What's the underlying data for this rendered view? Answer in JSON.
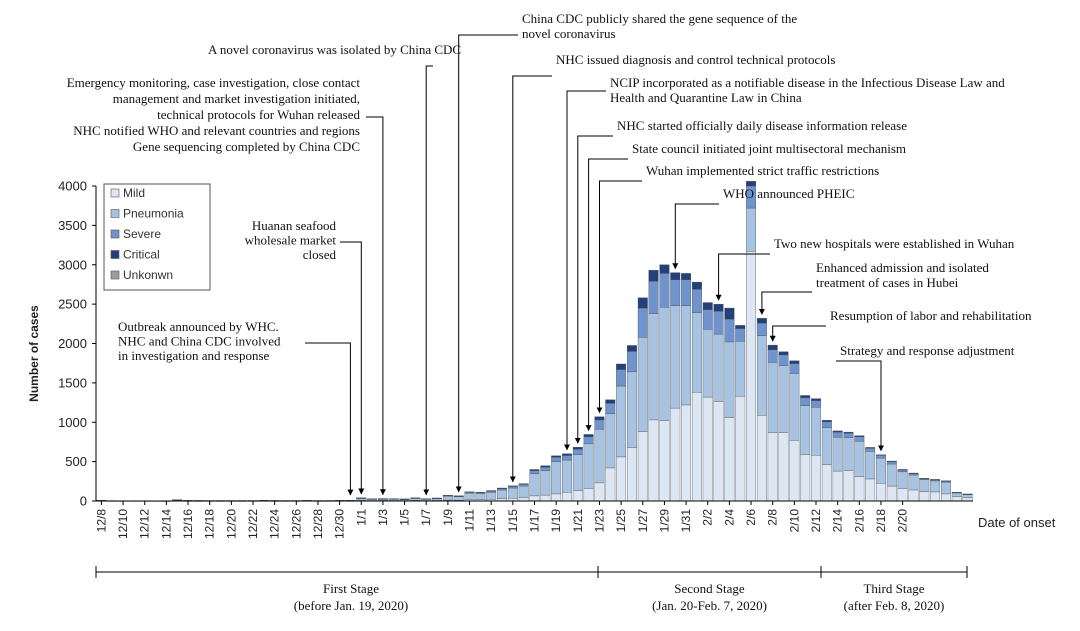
{
  "chart_data": {
    "type": "bar",
    "stacked": true,
    "xlabel": "Date of onset",
    "ylabel": "Number of cases",
    "ylim": [
      0,
      4000
    ],
    "yticks": [
      0,
      500,
      1000,
      1500,
      2000,
      2500,
      3000,
      3500,
      4000
    ],
    "grid": false,
    "legend_position": "top-left",
    "series": [
      {
        "name": "Mild",
        "color": "#dde7f4",
        "values": [
          3,
          2,
          2,
          2,
          2,
          2,
          1,
          4,
          2,
          2,
          2,
          2,
          2,
          2,
          2,
          3,
          2,
          2,
          2,
          3,
          2,
          2,
          3,
          3,
          8,
          5,
          7,
          6,
          5,
          8,
          5,
          7,
          12,
          10,
          20,
          15,
          22,
          30,
          35,
          40,
          65,
          75,
          90,
          110,
          130,
          160,
          230,
          420,
          560,
          680,
          880,
          1030,
          1020,
          1180,
          1220,
          1380,
          1320,
          1260,
          1060,
          1330,
          3170,
          1090,
          870,
          870,
          770,
          590,
          580,
          460,
          380,
          385,
          310,
          280,
          225,
          190,
          160,
          140,
          120,
          115,
          90,
          55,
          40
        ]
      },
      {
        "name": "Pneumonia",
        "color": "#a8c2e2",
        "values": [
          5,
          2,
          2,
          2,
          2,
          2,
          2,
          10,
          5,
          4,
          3,
          3,
          3,
          3,
          3,
          5,
          4,
          3,
          3,
          4,
          3,
          3,
          5,
          5,
          25,
          20,
          20,
          20,
          17,
          27,
          20,
          25,
          50,
          45,
          80,
          80,
          90,
          110,
          130,
          150,
          280,
          310,
          410,
          410,
          460,
          570,
          680,
          690,
          900,
          960,
          1200,
          1350,
          1440,
          1300,
          1260,
          1010,
          860,
          860,
          960,
          700,
          550,
          1010,
          890,
          850,
          850,
          620,
          610,
          470,
          430,
          420,
          450,
          350,
          320,
          280,
          210,
          190,
          150,
          140,
          150,
          50,
          45
        ]
      },
      {
        "name": "Severe",
        "color": "#6f93cc",
        "values": [
          1,
          1,
          0,
          0,
          0,
          0,
          0,
          2,
          1,
          1,
          1,
          1,
          1,
          1,
          1,
          1,
          1,
          1,
          1,
          1,
          1,
          1,
          1,
          1,
          5,
          3,
          3,
          3,
          3,
          4,
          3,
          5,
          8,
          8,
          12,
          12,
          15,
          18,
          20,
          22,
          40,
          45,
          55,
          58,
          68,
          85,
          120,
          130,
          210,
          260,
          370,
          410,
          430,
          330,
          330,
          300,
          250,
          290,
          290,
          160,
          280,
          160,
          160,
          135,
          125,
          100,
          85,
          75,
          65,
          55,
          55,
          40,
          35,
          30,
          25,
          20,
          14,
          14,
          13,
          4,
          3
        ]
      },
      {
        "name": "Critical",
        "color": "#23407a",
        "values": [
          0,
          0,
          0,
          0,
          0,
          0,
          0,
          1,
          0,
          0,
          0,
          0,
          0,
          0,
          0,
          0,
          0,
          0,
          0,
          0,
          0,
          0,
          0,
          0,
          2,
          1,
          1,
          1,
          1,
          2,
          1,
          1,
          3,
          3,
          5,
          5,
          6,
          7,
          8,
          9,
          15,
          18,
          20,
          22,
          25,
          30,
          40,
          45,
          70,
          75,
          130,
          140,
          110,
          90,
          80,
          90,
          90,
          90,
          140,
          40,
          60,
          60,
          60,
          40,
          35,
          30,
          25,
          20,
          15,
          15,
          15,
          10,
          8,
          7,
          6,
          5,
          5,
          5,
          4,
          1,
          1
        ]
      },
      {
        "name": "Unkonwn",
        "color": "#9c9c9c",
        "values": [
          0,
          0,
          0,
          0,
          0,
          0,
          0,
          0,
          0,
          0,
          0,
          0,
          0,
          0,
          0,
          0,
          0,
          0,
          0,
          0,
          0,
          0,
          0,
          0,
          0,
          0,
          0,
          0,
          0,
          0,
          0,
          0,
          0,
          0,
          0,
          0,
          0,
          0,
          0,
          0,
          0,
          0,
          0,
          0,
          0,
          0,
          0,
          0,
          0,
          0,
          0,
          0,
          0,
          0,
          0,
          0,
          0,
          0,
          0,
          0,
          0,
          0,
          0,
          0,
          0,
          0,
          0,
          0,
          0,
          0,
          0,
          0,
          0,
          0,
          0,
          0,
          0,
          0,
          0,
          0,
          0
        ]
      }
    ],
    "dates": [
      "12/8",
      "12/9",
      "12/10",
      "12/11",
      "12/12",
      "12/13",
      "12/14",
      "12/15",
      "12/16",
      "12/17",
      "12/18",
      "12/19",
      "12/20",
      "12/21",
      "12/22",
      "12/23",
      "12/24",
      "12/25",
      "12/26",
      "12/27",
      "12/28",
      "12/29",
      "12/30",
      "12/31",
      "1/1",
      "1/2",
      "1/3",
      "1/4",
      "1/5",
      "1/6",
      "1/7",
      "1/8",
      "1/9",
      "1/10",
      "1/11",
      "1/12",
      "1/13",
      "1/14",
      "1/15",
      "1/16",
      "1/17",
      "1/18",
      "1/19",
      "1/20",
      "1/21",
      "1/22",
      "1/23",
      "1/24",
      "1/25",
      "1/26",
      "1/27",
      "1/28",
      "1/29",
      "1/30",
      "1/31",
      "2/1",
      "2/2",
      "2/3",
      "2/4",
      "2/5",
      "2/6",
      "2/7",
      "2/8",
      "2/9",
      "2/10",
      "2/11",
      "2/12",
      "2/13",
      "2/14",
      "2/15",
      "2/16",
      "2/17",
      "2/18",
      "2/19",
      "2/20",
      "2/21",
      "2/22",
      "2/23",
      "2/24",
      "2/25",
      "2/26"
    ],
    "tick_labels": [
      "12/8",
      "12/10",
      "12/12",
      "12/14",
      "12/16",
      "12/18",
      "12/20",
      "12/22",
      "12/24",
      "12/26",
      "12/28",
      "12/30",
      "1/1",
      "1/3",
      "1/5",
      "1/7",
      "1/9",
      "1/11",
      "1/13",
      "1/15",
      "1/17",
      "1/19",
      "1/21",
      "1/23",
      "1/25",
      "1/27",
      "1/29",
      "1/31",
      "2/2",
      "2/4",
      "2/6",
      "2/8",
      "2/10",
      "2/12",
      "2/14",
      "2/16",
      "2/18",
      "2/20"
    ],
    "annotations": [
      {
        "date": "12/31",
        "lines": [
          "Outbreak announced by WHC.",
          "NHC and China CDC involved",
          "in investigation and response"
        ]
      },
      {
        "date": "1/1",
        "lines": [
          "Huanan seafood",
          "wholesale market",
          "closed"
        ]
      },
      {
        "date": "1/3",
        "lines": [
          "Emergency monitoring, case investigation, close contact",
          "management and market investigation initiated,",
          "technical protocols for Wuhan released",
          "NHC notified WHO and relevant countries and regions",
          "Gene sequencing completed by China CDC"
        ]
      },
      {
        "date": "1/7",
        "lines": [
          "A novel coronavirus was isolated by China CDC"
        ]
      },
      {
        "date": "1/10",
        "lines": [
          "China CDC publicly shared the gene sequence of the",
          "novel coronavirus"
        ]
      },
      {
        "date": "1/15",
        "lines": [
          "NHC issued diagnosis and control technical protocols"
        ]
      },
      {
        "date": "1/20",
        "lines": [
          "NCIP incorporated as a notifiable disease in the Infectious Disease Law and",
          "Health and Quarantine Law in China"
        ]
      },
      {
        "date": "1/21",
        "lines": [
          "NHC started officially daily disease information release"
        ]
      },
      {
        "date": "1/22",
        "lines": [
          "State council initiated joint multisectoral mechanism"
        ]
      },
      {
        "date": "1/23",
        "lines": [
          "Wuhan implemented strict traffic restrictions"
        ]
      },
      {
        "date": "1/30",
        "lines": [
          "WHO announced PHEIC"
        ]
      },
      {
        "date": "2/3",
        "lines": [
          "Two new hospitals were established in Wuhan"
        ]
      },
      {
        "date": "2/7",
        "lines": [
          "Enhanced admission and isolated",
          "treatment of cases in Hubei"
        ]
      },
      {
        "date": "2/8",
        "lines": [
          "Resumption of labor and rehabilitation"
        ]
      },
      {
        "date": "2/18",
        "lines": [
          "Strategy and response adjustment"
        ]
      }
    ],
    "stages": [
      {
        "label": "First Stage",
        "sublabel": "(before Jan. 19, 2020)",
        "start": "12/8",
        "end": "1/19"
      },
      {
        "label": "Second Stage",
        "sublabel": "(Jan. 20-Feb. 7, 2020)",
        "start": "1/20",
        "end": "2/7"
      },
      {
        "label": "Third Stage",
        "sublabel": "(after Feb. 8, 2020)",
        "start": "2/8",
        "end": "2/26"
      }
    ]
  }
}
